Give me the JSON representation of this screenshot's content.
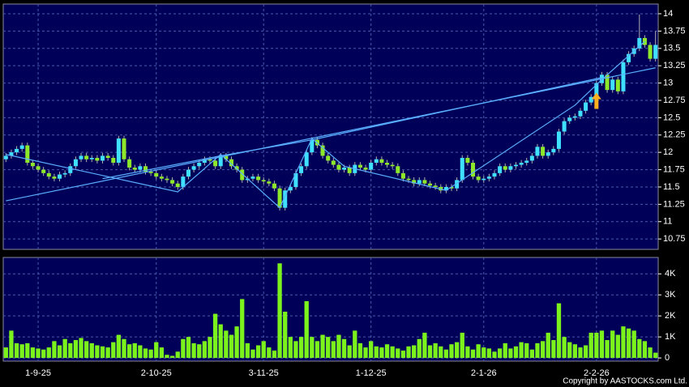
{
  "chart_data": {
    "type": "candlestick",
    "categories": [
      null,
      null,
      null,
      null,
      null,
      null,
      "1-9-25",
      null,
      null,
      null,
      null,
      null,
      null,
      null,
      null,
      null,
      null,
      null,
      null,
      null,
      null,
      null,
      null,
      null,
      null,
      null,
      null,
      null,
      "2-10-25",
      null,
      null,
      null,
      null,
      null,
      null,
      null,
      null,
      null,
      null,
      null,
      null,
      null,
      null,
      null,
      null,
      null,
      null,
      null,
      "3-11-25",
      null,
      null,
      null,
      null,
      null,
      null,
      null,
      null,
      null,
      null,
      null,
      null,
      null,
      null,
      null,
      null,
      null,
      null,
      null,
      "1-12-25",
      null,
      null,
      null,
      null,
      null,
      null,
      null,
      null,
      null,
      null,
      null,
      null,
      null,
      null,
      null,
      null,
      null,
      null,
      null,
      null,
      "2-1-26",
      null,
      null,
      null,
      null,
      null,
      null,
      null,
      null,
      null,
      null,
      null,
      null,
      null,
      null,
      null,
      null,
      null,
      null,
      null,
      null,
      "2-2-26",
      null,
      null,
      null,
      null,
      null,
      null,
      null,
      null,
      null,
      null,
      null
    ],
    "open": [
      11.9,
      11.95,
      12.0,
      12.05,
      12.1,
      11.85,
      11.8,
      11.75,
      11.7,
      11.65,
      11.62,
      11.68,
      11.7,
      11.8,
      11.9,
      11.95,
      11.9,
      11.92,
      11.88,
      11.95,
      11.92,
      11.85,
      12.2,
      11.9,
      11.78,
      11.75,
      11.8,
      11.72,
      11.7,
      11.65,
      11.62,
      11.6,
      11.55,
      11.5,
      11.65,
      11.75,
      11.8,
      11.85,
      11.9,
      11.88,
      11.8,
      11.95,
      11.9,
      11.8,
      11.75,
      11.6,
      11.62,
      11.65,
      11.6,
      11.58,
      11.55,
      11.48,
      11.2,
      11.45,
      11.5,
      11.7,
      11.8,
      12.0,
      12.18,
      12.1,
      11.95,
      11.88,
      11.82,
      11.75,
      11.78,
      11.7,
      11.82,
      11.78,
      11.75,
      11.85,
      11.9,
      11.85,
      11.82,
      11.8,
      11.7,
      11.62,
      11.6,
      11.55,
      11.6,
      11.55,
      11.52,
      11.5,
      11.45,
      11.5,
      11.48,
      11.6,
      11.92,
      11.85,
      11.65,
      11.6,
      11.62,
      11.65,
      11.7,
      11.8,
      11.75,
      11.8,
      11.82,
      11.85,
      11.88,
      11.95,
      12.08,
      11.95,
      12.0,
      12.05,
      12.3,
      12.45,
      12.5,
      12.52,
      12.6,
      12.72,
      12.8,
      13.0,
      13.12,
      12.9,
      13.05,
      12.88,
      13.3,
      13.42,
      13.5,
      13.65,
      13.55,
      13.35
    ],
    "high": [
      11.99,
      12.04,
      12.09,
      12.14,
      12.14,
      11.89,
      11.84,
      11.79,
      11.74,
      11.69,
      11.72,
      11.74,
      11.84,
      11.94,
      11.99,
      11.99,
      11.96,
      11.96,
      11.99,
      11.99,
      11.96,
      12.24,
      12.24,
      11.94,
      11.82,
      11.84,
      11.84,
      11.76,
      11.74,
      11.69,
      11.66,
      11.64,
      11.59,
      11.69,
      11.79,
      11.84,
      11.89,
      11.94,
      11.94,
      11.92,
      11.99,
      11.99,
      11.94,
      11.84,
      11.79,
      11.66,
      11.69,
      11.69,
      11.64,
      11.62,
      11.59,
      11.52,
      11.49,
      11.54,
      11.74,
      11.84,
      12.04,
      12.22,
      12.22,
      12.14,
      11.99,
      11.92,
      11.86,
      11.82,
      11.82,
      11.86,
      11.86,
      11.82,
      11.89,
      11.94,
      11.94,
      11.89,
      11.86,
      11.84,
      11.74,
      11.66,
      11.64,
      11.64,
      11.64,
      11.59,
      11.56,
      11.54,
      11.54,
      11.54,
      11.64,
      11.96,
      11.96,
      11.89,
      11.69,
      11.66,
      11.69,
      11.74,
      11.84,
      11.84,
      11.84,
      11.86,
      11.89,
      11.92,
      11.99,
      12.12,
      12.12,
      12.04,
      12.09,
      12.34,
      12.49,
      12.54,
      12.56,
      12.64,
      12.76,
      12.84,
      13.04,
      13.16,
      13.16,
      13.09,
      13.09,
      13.34,
      13.46,
      13.54,
      13.99,
      13.69,
      13.59,
      13.75
    ],
    "low": [
      11.86,
      11.91,
      11.96,
      12.01,
      11.81,
      11.76,
      11.71,
      11.66,
      11.61,
      11.58,
      11.58,
      11.64,
      11.66,
      11.76,
      11.86,
      11.86,
      11.86,
      11.84,
      11.84,
      11.88,
      11.81,
      11.81,
      11.86,
      11.74,
      11.71,
      11.71,
      11.68,
      11.66,
      11.61,
      11.58,
      11.56,
      11.51,
      11.46,
      11.46,
      11.61,
      11.71,
      11.76,
      11.81,
      11.84,
      11.76,
      11.76,
      11.86,
      11.76,
      11.71,
      11.56,
      11.56,
      11.58,
      11.56,
      11.54,
      11.51,
      11.44,
      11.16,
      11.16,
      11.41,
      11.46,
      11.66,
      11.76,
      11.96,
      12.06,
      11.91,
      11.84,
      11.78,
      11.71,
      11.71,
      11.66,
      11.66,
      11.74,
      11.71,
      11.71,
      11.81,
      11.81,
      11.78,
      11.76,
      11.66,
      11.58,
      11.56,
      11.51,
      11.51,
      11.51,
      11.48,
      11.46,
      11.41,
      11.41,
      11.44,
      11.44,
      11.56,
      11.81,
      11.61,
      11.56,
      11.56,
      11.58,
      11.61,
      11.66,
      11.71,
      11.71,
      11.76,
      11.78,
      11.81,
      11.84,
      11.91,
      11.91,
      11.91,
      11.96,
      12.01,
      12.26,
      12.41,
      12.46,
      12.48,
      12.56,
      12.68,
      12.76,
      12.96,
      12.86,
      12.86,
      12.84,
      12.84,
      13.26,
      13.38,
      13.46,
      13.51,
      13.31,
      13.31
    ],
    "close": [
      11.95,
      12.0,
      12.05,
      12.1,
      11.85,
      11.8,
      11.75,
      11.7,
      11.65,
      11.62,
      11.68,
      11.7,
      11.8,
      11.9,
      11.95,
      11.9,
      11.92,
      11.88,
      11.95,
      11.92,
      11.85,
      12.2,
      11.9,
      11.78,
      11.75,
      11.8,
      11.72,
      11.7,
      11.65,
      11.62,
      11.6,
      11.55,
      11.5,
      11.65,
      11.75,
      11.8,
      11.85,
      11.9,
      11.88,
      11.8,
      11.95,
      11.9,
      11.8,
      11.75,
      11.6,
      11.62,
      11.65,
      11.6,
      11.58,
      11.55,
      11.48,
      11.2,
      11.45,
      11.5,
      11.7,
      11.8,
      12.0,
      12.18,
      12.1,
      11.95,
      11.88,
      11.82,
      11.75,
      11.78,
      11.7,
      11.82,
      11.78,
      11.75,
      11.85,
      11.9,
      11.85,
      11.82,
      11.8,
      11.7,
      11.62,
      11.6,
      11.55,
      11.6,
      11.55,
      11.52,
      11.5,
      11.45,
      11.5,
      11.48,
      11.6,
      11.92,
      11.85,
      11.65,
      11.6,
      11.62,
      11.65,
      11.7,
      11.8,
      11.75,
      11.8,
      11.82,
      11.85,
      11.88,
      11.95,
      12.08,
      11.95,
      12.0,
      12.05,
      12.3,
      12.45,
      12.5,
      12.52,
      12.6,
      12.72,
      12.8,
      13.0,
      13.12,
      12.9,
      13.05,
      12.88,
      13.3,
      13.42,
      13.5,
      13.65,
      13.55,
      13.35,
      13.55
    ],
    "volume": [
      500,
      1300,
      700,
      650,
      700,
      500,
      450,
      400,
      500,
      800,
      600,
      900,
      700,
      850,
      950,
      800,
      700,
      600,
      550,
      500,
      750,
      1100,
      900,
      650,
      700,
      600,
      450,
      400,
      750,
      500,
      150,
      100,
      300,
      900,
      1000,
      700,
      650,
      800,
      1000,
      2100,
      1600,
      1300,
      1100,
      1500,
      2800,
      700,
      400,
      600,
      800,
      500,
      350,
      4500,
      2200,
      1000,
      800,
      1000,
      2700,
      1000,
      800,
      1100,
      1000,
      800,
      1100,
      900,
      600,
      1300,
      700,
      500,
      800,
      550,
      500,
      650,
      550,
      450,
      350,
      550,
      600,
      900,
      1200,
      600,
      700,
      550,
      400,
      650,
      750,
      1200,
      550,
      400,
      650,
      500,
      450,
      300,
      450,
      700,
      450,
      550,
      750,
      700,
      400,
      700,
      800,
      1200,
      850,
      2600,
      1000,
      750,
      650,
      500,
      600,
      1200,
      1200,
      1300,
      850,
      1300,
      1100,
      1500,
      1400,
      1300,
      900,
      800,
      500,
      250
    ],
    "up_color": "#3fe0ff",
    "down_color": "#8ee82a",
    "volume_color": "#7cf21c",
    "line_color": "#5aaeff",
    "marker_color": "#ffb020",
    "ylim": [
      10.6,
      14.14
    ],
    "yticks": [
      14,
      13.75,
      13.5,
      13.25,
      13,
      12.75,
      12.5,
      12.25,
      12,
      11.75,
      11.5,
      11.25,
      11,
      10.75
    ],
    "y2lim": [
      -150,
      4780
    ],
    "y2ticks": [
      {
        "value": 4000,
        "label": "4K"
      },
      {
        "value": 3000,
        "label": "3K"
      },
      {
        "value": 2000,
        "label": "2K"
      },
      {
        "value": 1000,
        "label": "1K"
      },
      0
    ],
    "grid": true,
    "overlay_lines": [
      {
        "index": [
          0,
          121
        ],
        "value": [
          11.3,
          13.22
        ]
      },
      {
        "index": [
          0,
          32,
          40,
          51,
          57,
          63,
          82,
          106,
          111,
          119
        ],
        "value": [
          11.97,
          11.43,
          11.97,
          11.2,
          12.2,
          11.8,
          11.45,
          12.68,
          13.05,
          13.6
        ]
      },
      {
        "index": [
          18,
          40,
          57,
          111
        ],
        "value": [
          11.62,
          11.95,
          12.18,
          13.08
        ]
      }
    ],
    "marker": {
      "index": 110,
      "value": 12.72
    },
    "credit": "Copyright by AASTOCKS.com Ltd."
  }
}
